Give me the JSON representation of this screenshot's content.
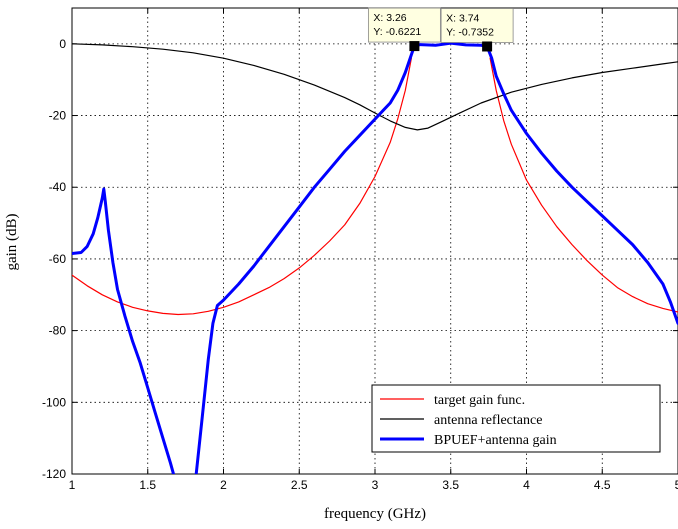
{
  "chart_data": {
    "type": "line",
    "xlabel": "frequency (GHz)",
    "ylabel": "gain (dB)",
    "xlim": [
      1,
      5
    ],
    "ylim": [
      -120,
      10
    ],
    "xticks": [
      1,
      1.5,
      2,
      2.5,
      3,
      3.5,
      4,
      4.5,
      5
    ],
    "xtick_labels": [
      "1",
      "1.5",
      "2",
      "2.5",
      "3",
      "3.5",
      "4",
      "4.5",
      "5"
    ],
    "yticks": [
      0,
      -20,
      -40,
      -60,
      -80,
      -100,
      -120
    ],
    "ytick_labels": [
      "0",
      "-20",
      "-40",
      "-60",
      "-80",
      "-100",
      "-120"
    ],
    "grid": true,
    "legend_position": "bottom-right",
    "series": [
      {
        "name": "target gain func.",
        "color": "#ff0000",
        "width": 1.2,
        "segments": [
          [
            [
              1.0,
              -64.5
            ],
            [
              1.1,
              -67.5
            ],
            [
              1.2,
              -70
            ],
            [
              1.3,
              -72
            ],
            [
              1.4,
              -73.5
            ],
            [
              1.5,
              -74.5
            ],
            [
              1.6,
              -75.2
            ],
            [
              1.7,
              -75.5
            ],
            [
              1.8,
              -75.3
            ],
            [
              1.9,
              -74.6
            ],
            [
              2.0,
              -73.5
            ],
            [
              2.1,
              -72
            ],
            [
              2.2,
              -70
            ],
            [
              2.3,
              -68
            ],
            [
              2.4,
              -65.5
            ],
            [
              2.5,
              -62.5
            ],
            [
              2.6,
              -59
            ],
            [
              2.7,
              -55
            ],
            [
              2.8,
              -50.5
            ],
            [
              2.9,
              -44.5
            ],
            [
              3.0,
              -37
            ],
            [
              3.1,
              -27.5
            ],
            [
              3.15,
              -21
            ],
            [
              3.2,
              -13
            ],
            [
              3.24,
              -4
            ]
          ],
          [
            [
              3.76,
              -4
            ],
            [
              3.8,
              -13
            ],
            [
              3.85,
              -21.5
            ],
            [
              3.9,
              -28
            ],
            [
              4.0,
              -38
            ],
            [
              4.1,
              -45
            ],
            [
              4.2,
              -51
            ],
            [
              4.3,
              -56
            ],
            [
              4.4,
              -60.5
            ],
            [
              4.5,
              -64.5
            ],
            [
              4.6,
              -68
            ],
            [
              4.7,
              -70.5
            ],
            [
              4.8,
              -72.5
            ],
            [
              4.9,
              -73.8
            ],
            [
              5.0,
              -74.8
            ]
          ]
        ]
      },
      {
        "name": "antenna reflectance",
        "color": "#000000",
        "width": 1.2,
        "segments": [
          [
            [
              1.0,
              0
            ],
            [
              1.2,
              -0.3
            ],
            [
              1.4,
              -0.8
            ],
            [
              1.6,
              -1.5
            ],
            [
              1.8,
              -2.5
            ],
            [
              2.0,
              -4
            ],
            [
              2.2,
              -6
            ],
            [
              2.4,
              -8.5
            ],
            [
              2.6,
              -11.5
            ],
            [
              2.8,
              -15
            ],
            [
              2.9,
              -17
            ],
            [
              3.0,
              -19.3
            ],
            [
              3.1,
              -21.5
            ],
            [
              3.2,
              -23.3
            ],
            [
              3.28,
              -24
            ],
            [
              3.35,
              -23.5
            ],
            [
              3.45,
              -21.5
            ],
            [
              3.55,
              -19.5
            ],
            [
              3.7,
              -16.5
            ],
            [
              3.9,
              -13.5
            ],
            [
              4.1,
              -11.3
            ],
            [
              4.3,
              -9.5
            ],
            [
              4.5,
              -8
            ],
            [
              4.7,
              -6.8
            ],
            [
              4.9,
              -5.6
            ],
            [
              5.0,
              -5
            ]
          ]
        ]
      },
      {
        "name": "BPUEF+antenna gain",
        "color": "#0000ff",
        "width": 3,
        "segments": [
          [
            [
              1.0,
              -58.5
            ],
            [
              1.06,
              -58.2
            ],
            [
              1.1,
              -56.5
            ],
            [
              1.14,
              -53
            ],
            [
              1.17,
              -48.5
            ],
            [
              1.2,
              -43
            ],
            [
              1.21,
              -40.5
            ],
            [
              1.22,
              -44
            ],
            [
              1.24,
              -52
            ],
            [
              1.27,
              -61
            ],
            [
              1.3,
              -68.5
            ],
            [
              1.35,
              -76
            ],
            [
              1.4,
              -83
            ],
            [
              1.45,
              -89
            ],
            [
              1.5,
              -96
            ],
            [
              1.55,
              -103
            ],
            [
              1.6,
              -110
            ],
            [
              1.65,
              -117
            ],
            [
              1.67,
              -120
            ]
          ],
          [
            [
              1.82,
              -120
            ],
            [
              1.86,
              -104
            ],
            [
              1.9,
              -88
            ],
            [
              1.93,
              -78
            ],
            [
              1.96,
              -73
            ],
            [
              2.0,
              -71.5
            ],
            [
              2.1,
              -67
            ],
            [
              2.2,
              -62
            ],
            [
              2.3,
              -56.5
            ],
            [
              2.4,
              -51
            ],
            [
              2.5,
              -45.5
            ],
            [
              2.6,
              -40
            ],
            [
              2.7,
              -35
            ],
            [
              2.8,
              -30
            ],
            [
              2.9,
              -25.5
            ],
            [
              3.0,
              -21
            ],
            [
              3.1,
              -16.5
            ],
            [
              3.15,
              -13
            ],
            [
              3.2,
              -8
            ],
            [
              3.24,
              -3
            ],
            [
              3.26,
              -0.6
            ],
            [
              3.3,
              -0.2
            ],
            [
              3.4,
              -0.4
            ],
            [
              3.5,
              0.2
            ],
            [
              3.6,
              -0.3
            ],
            [
              3.7,
              -0.4
            ],
            [
              3.74,
              -0.7
            ],
            [
              3.77,
              -4
            ],
            [
              3.8,
              -9
            ],
            [
              3.85,
              -14
            ],
            [
              3.9,
              -18.5
            ],
            [
              4.0,
              -25
            ],
            [
              4.1,
              -30.5
            ],
            [
              4.2,
              -35.5
            ],
            [
              4.3,
              -40
            ],
            [
              4.4,
              -44
            ],
            [
              4.5,
              -48
            ],
            [
              4.6,
              -52
            ],
            [
              4.7,
              -56
            ],
            [
              4.8,
              -61
            ],
            [
              4.9,
              -67
            ],
            [
              4.95,
              -72
            ],
            [
              5.0,
              -78
            ]
          ]
        ]
      }
    ],
    "datatips": [
      {
        "x": 3.26,
        "y": -0.6221,
        "x_text": "X: 3.26",
        "y_text": "Y: -0.6221"
      },
      {
        "x": 3.74,
        "y": -0.7352,
        "x_text": "X: 3.74",
        "y_text": "Y: -0.7352"
      }
    ]
  }
}
